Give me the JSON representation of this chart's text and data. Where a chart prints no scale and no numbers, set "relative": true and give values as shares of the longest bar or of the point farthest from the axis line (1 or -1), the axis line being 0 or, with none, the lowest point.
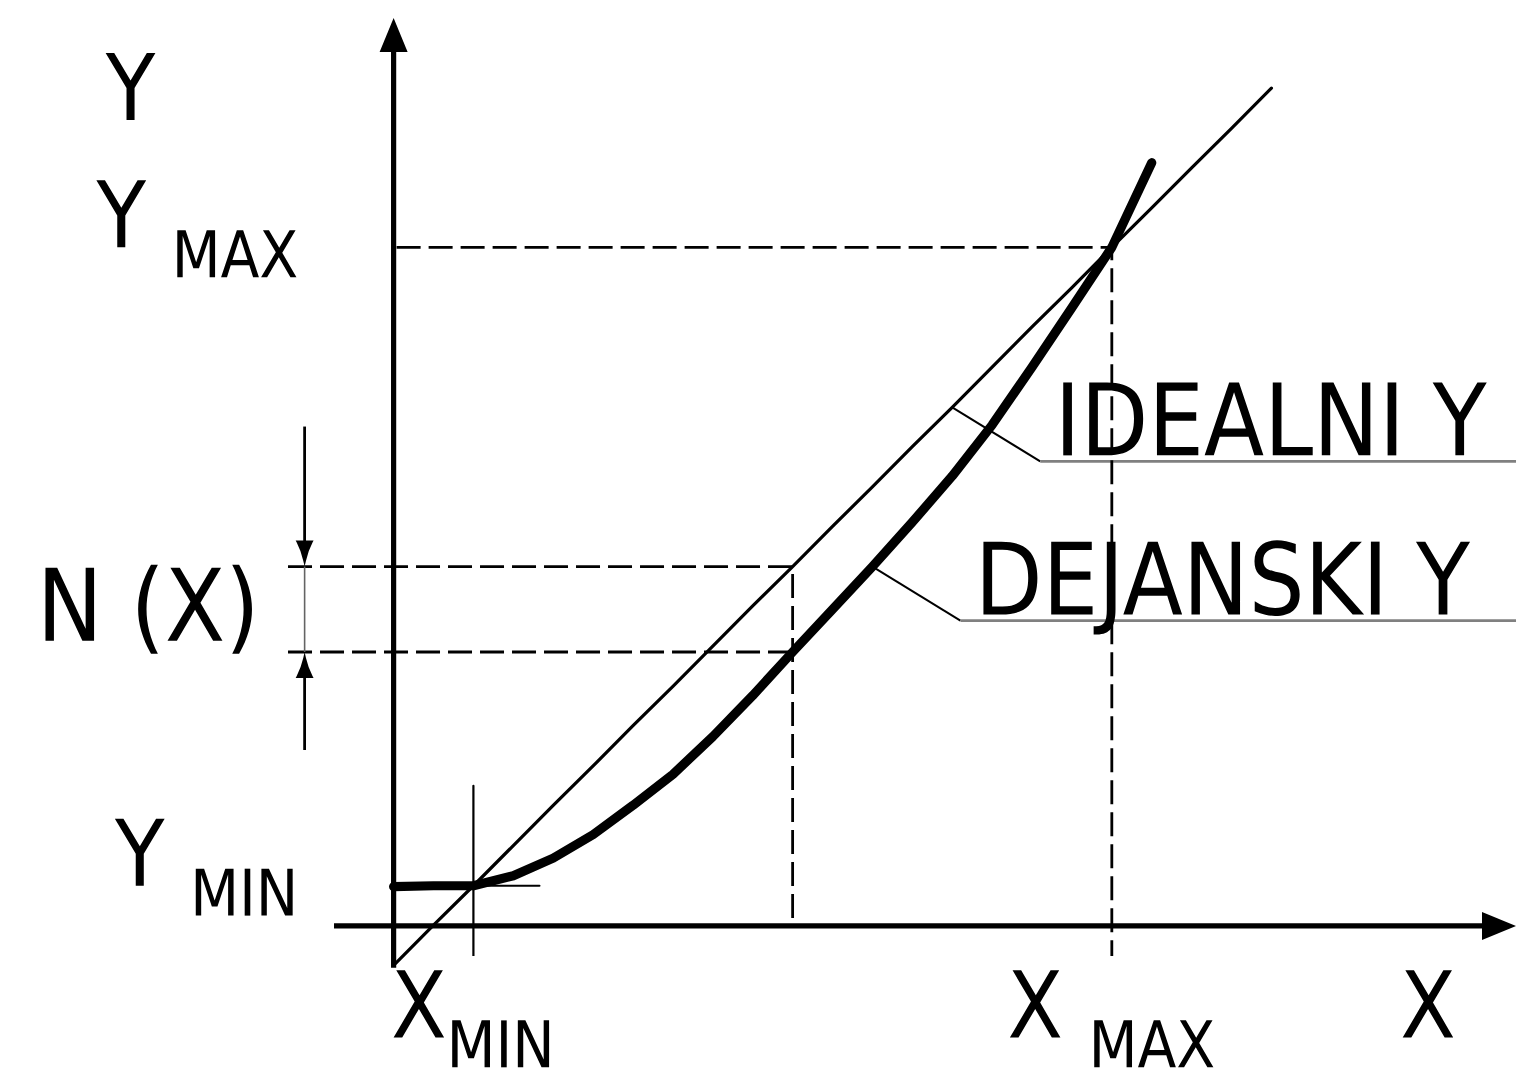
{
  "chart_data": {
    "type": "line",
    "relative": true,
    "xlabel": "X",
    "ylabel": "Y",
    "legend": "right",
    "categories": [
      null,
      null,
      "X$_{MIN}$",
      null,
      null,
      null,
      null,
      null,
      null,
      null,
      null,
      null,
      null,
      null,
      null,
      null,
      null,
      null,
      "X $_{MAX}$",
      null,
      null,
      null,
      null
    ],
    "series": [
      {
        "name": "IDEALNI Y",
        "color": "#000000",
        "values": [
          -0.047,
          0.001,
          0.048,
          0.096,
          0.144,
          0.191,
          0.239,
          0.286,
          0.334,
          0.382,
          0.429,
          0.477,
          0.524,
          0.572,
          0.619,
          0.667,
          0.715,
          0.762,
          0.81,
          0.857,
          0.905,
          0.952,
          1
        ]
      },
      {
        "name": "DEJANSKI Y",
        "color": "#000000",
        "values": [
          0.047,
          0.048,
          0.048,
          0.06,
          0.081,
          0.109,
          0.144,
          0.181,
          0.226,
          0.275,
          0.327,
          0.378,
          0.429,
          0.482,
          0.537,
          0.598,
          0.667,
          0.738,
          0.81,
          0.911,
          null,
          null,
          null
        ]
      }
    ],
    "ref_lines": [
      {
        "axis": "y",
        "value": 0.81,
        "label": "Y $_{MAX}$",
        "line_style": "dashed"
      },
      {
        "axis": "y",
        "value": 0.048,
        "label": "Y $_{MIN}$",
        "line_style": "solid"
      },
      {
        "axis": "y",
        "value": 0.429,
        "line_style": "dashed"
      },
      {
        "axis": "y",
        "value": 0.327,
        "line_style": "dashed"
      }
    ],
    "annotations": [
      "N (X)"
    ]
  }
}
